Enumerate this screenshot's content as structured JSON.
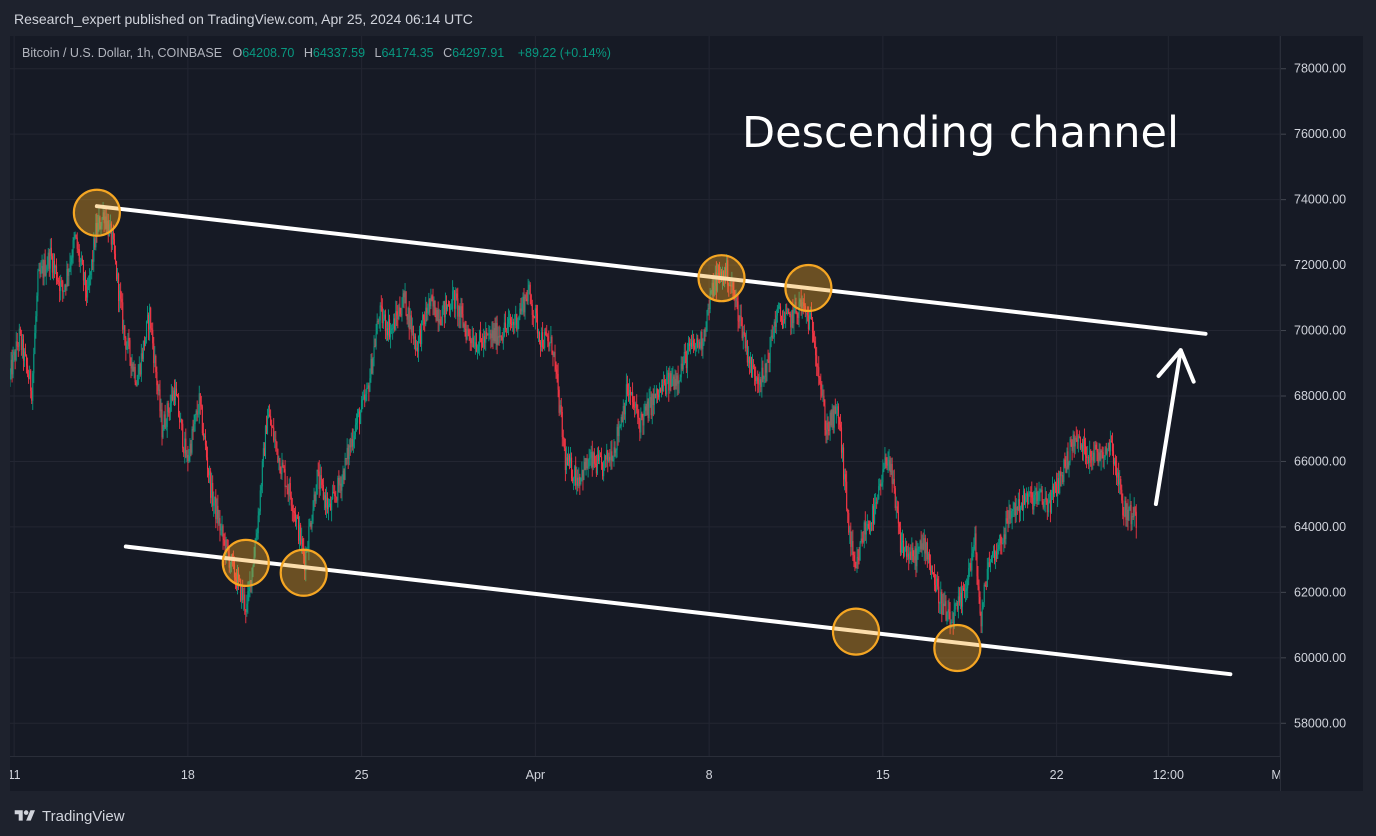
{
  "header": {
    "publish_text": "Research_expert published on TradingView.com, Apr 25, 2024 06:14 UTC"
  },
  "legend": {
    "symbol": "Bitcoin / U.S. Dollar, 1h, COINBASE",
    "open_label": "O",
    "open": "64208.70",
    "high_label": "H",
    "high": "64337.59",
    "low_label": "L",
    "low": "64174.35",
    "close_label": "C",
    "close": "64297.91",
    "change": "+89.22 (+0.14%)"
  },
  "annotation": {
    "text": "Descending channel"
  },
  "footer": {
    "brand": "TradingView"
  },
  "colors": {
    "background": "#161a25",
    "up": "#089981",
    "down": "#f23645",
    "channel": "#ffffff",
    "marker": "#f5a623",
    "axis_text": "#d1d4dc"
  },
  "chart_data": {
    "type": "candlestick",
    "timeframe": "1h",
    "y_ticks": [
      "58000.00",
      "60000.00",
      "62000.00",
      "64000.00",
      "66000.00",
      "68000.00",
      "70000.00",
      "72000.00",
      "74000.00",
      "76000.00",
      "78000.00"
    ],
    "x_ticks": [
      "11",
      "18",
      "25",
      "Apr",
      "8",
      "15",
      "22",
      "12:00",
      "Ma"
    ],
    "x_tick_dates": [
      "2024-03-11",
      "2024-03-18",
      "2024-03-25",
      "2024-04-01",
      "2024-04-08",
      "2024-04-15",
      "2024-04-22",
      "2024-04-26 12:00",
      "2024-05-01"
    ],
    "x_range": [
      "2024-03-10 20:00",
      "2024-05-01 00:00"
    ],
    "ylim": [
      57000,
      79000
    ],
    "grid": true,
    "price_path": [
      [
        "2024-03-10 20:00",
        68500
      ],
      [
        "2024-03-11 06:00",
        69800
      ],
      [
        "2024-03-11 18:00",
        68200
      ],
      [
        "2024-03-12 00:00",
        71500
      ],
      [
        "2024-03-12 12:00",
        72300
      ],
      [
        "2024-03-13 00:00",
        71200
      ],
      [
        "2024-03-13 12:00",
        72800
      ],
      [
        "2024-03-14 00:00",
        71000
      ],
      [
        "2024-03-14 08:00",
        73000
      ],
      [
        "2024-03-14 16:00",
        73600
      ],
      [
        "2024-03-15 00:00",
        72700
      ],
      [
        "2024-03-15 12:00",
        69800
      ],
      [
        "2024-03-16 00:00",
        68500
      ],
      [
        "2024-03-16 12:00",
        70500
      ],
      [
        "2024-03-17 00:00",
        67000
      ],
      [
        "2024-03-17 12:00",
        68200
      ],
      [
        "2024-03-18 00:00",
        66000
      ],
      [
        "2024-03-18 12:00",
        67800
      ],
      [
        "2024-03-19 00:00",
        65000
      ],
      [
        "2024-03-19 12:00",
        63500
      ],
      [
        "2024-03-20 00:00",
        62400
      ],
      [
        "2024-03-20 10:00",
        61500
      ],
      [
        "2024-03-20 20:00",
        64000
      ],
      [
        "2024-03-21 06:00",
        67500
      ],
      [
        "2024-03-21 18:00",
        66000
      ],
      [
        "2024-03-22 06:00",
        64800
      ],
      [
        "2024-03-22 18:00",
        63000
      ],
      [
        "2024-03-23 06:00",
        65500
      ],
      [
        "2024-03-23 18:00",
        64500
      ],
      [
        "2024-03-24 06:00",
        65500
      ],
      [
        "2024-03-24 18:00",
        67000
      ],
      [
        "2024-03-25 06:00",
        68000
      ],
      [
        "2024-03-25 18:00",
        70500
      ],
      [
        "2024-03-26 06:00",
        70000
      ],
      [
        "2024-03-26 18:00",
        71000
      ],
      [
        "2024-03-27 06:00",
        69500
      ],
      [
        "2024-03-27 18:00",
        70800
      ],
      [
        "2024-03-28 06:00",
        70500
      ],
      [
        "2024-03-28 18:00",
        71000
      ],
      [
        "2024-03-29 06:00",
        70000
      ],
      [
        "2024-03-29 18:00",
        69600
      ],
      [
        "2024-03-30 06:00",
        69800
      ],
      [
        "2024-03-30 18:00",
        70000
      ],
      [
        "2024-03-31 06:00",
        70300
      ],
      [
        "2024-03-31 18:00",
        71200
      ],
      [
        "2024-04-01 06:00",
        69800
      ],
      [
        "2024-04-01 18:00",
        69500
      ],
      [
        "2024-04-02 06:00",
        66000
      ],
      [
        "2024-04-02 18:00",
        65500
      ],
      [
        "2024-04-03 06:00",
        66000
      ],
      [
        "2024-04-03 18:00",
        65800
      ],
      [
        "2024-04-04 06:00",
        66500
      ],
      [
        "2024-04-04 18:00",
        68200
      ],
      [
        "2024-04-05 06:00",
        67200
      ],
      [
        "2024-04-05 18:00",
        67800
      ],
      [
        "2024-04-06 06:00",
        68300
      ],
      [
        "2024-04-06 18:00",
        68600
      ],
      [
        "2024-04-07 06:00",
        69400
      ],
      [
        "2024-04-07 18:00",
        69700
      ],
      [
        "2024-04-08 06:00",
        71500
      ],
      [
        "2024-04-08 18:00",
        71800
      ],
      [
        "2024-04-09 06:00",
        70500
      ],
      [
        "2024-04-09 18:00",
        68800
      ],
      [
        "2024-04-10 06:00",
        68500
      ],
      [
        "2024-04-10 18:00",
        70500
      ],
      [
        "2024-04-11 06:00",
        70300
      ],
      [
        "2024-04-11 18:00",
        70800
      ],
      [
        "2024-04-12 06:00",
        70000
      ],
      [
        "2024-04-12 18:00",
        67000
      ],
      [
        "2024-04-13 06:00",
        67500
      ],
      [
        "2024-04-13 16:00",
        64000
      ],
      [
        "2024-04-13 22:00",
        62500
      ],
      [
        "2024-04-14 06:00",
        63800
      ],
      [
        "2024-04-14 18:00",
        64500
      ],
      [
        "2024-04-15 06:00",
        66300
      ],
      [
        "2024-04-15 18:00",
        63500
      ],
      [
        "2024-04-16 06:00",
        63000
      ],
      [
        "2024-04-16 18:00",
        63500
      ],
      [
        "2024-04-17 06:00",
        62000
      ],
      [
        "2024-04-17 18:00",
        61000
      ],
      [
        "2024-04-18 06:00",
        61800
      ],
      [
        "2024-04-18 18:00",
        63500
      ],
      [
        "2024-04-19 00:00",
        61000
      ],
      [
        "2024-04-19 06:00",
        62800
      ],
      [
        "2024-04-19 18:00",
        63500
      ],
      [
        "2024-04-20 06:00",
        64500
      ],
      [
        "2024-04-20 18:00",
        64800
      ],
      [
        "2024-04-21 06:00",
        64900
      ],
      [
        "2024-04-21 18:00",
        64700
      ],
      [
        "2024-04-22 06:00",
        65600
      ],
      [
        "2024-04-22 18:00",
        66700
      ],
      [
        "2024-04-23 06:00",
        66300
      ],
      [
        "2024-04-23 18:00",
        66200
      ],
      [
        "2024-04-24 06:00",
        66600
      ],
      [
        "2024-04-24 18:00",
        64500
      ],
      [
        "2024-04-25 06:00",
        64300
      ]
    ],
    "channel_upper": {
      "from": [
        "2024-03-14 08:00",
        73800
      ],
      "to": [
        "2024-04-28 00:00",
        69900
      ]
    },
    "channel_lower": {
      "from": [
        "2024-03-15 12:00",
        63400
      ],
      "to": [
        "2024-04-29 00:00",
        59500
      ]
    },
    "touch_points": [
      [
        "2024-03-14 08:00",
        73600
      ],
      [
        "2024-04-08 12:00",
        71600
      ],
      [
        "2024-04-12 00:00",
        71300
      ],
      [
        "2024-03-20 08:00",
        62900
      ],
      [
        "2024-03-22 16:00",
        62600
      ],
      [
        "2024-04-13 22:00",
        60800
      ],
      [
        "2024-04-18 00:00",
        60300
      ]
    ],
    "projection_arrow": {
      "from": [
        "2024-04-26 00:00",
        64700
      ],
      "to": [
        "2024-04-27 00:00",
        69400
      ]
    }
  }
}
